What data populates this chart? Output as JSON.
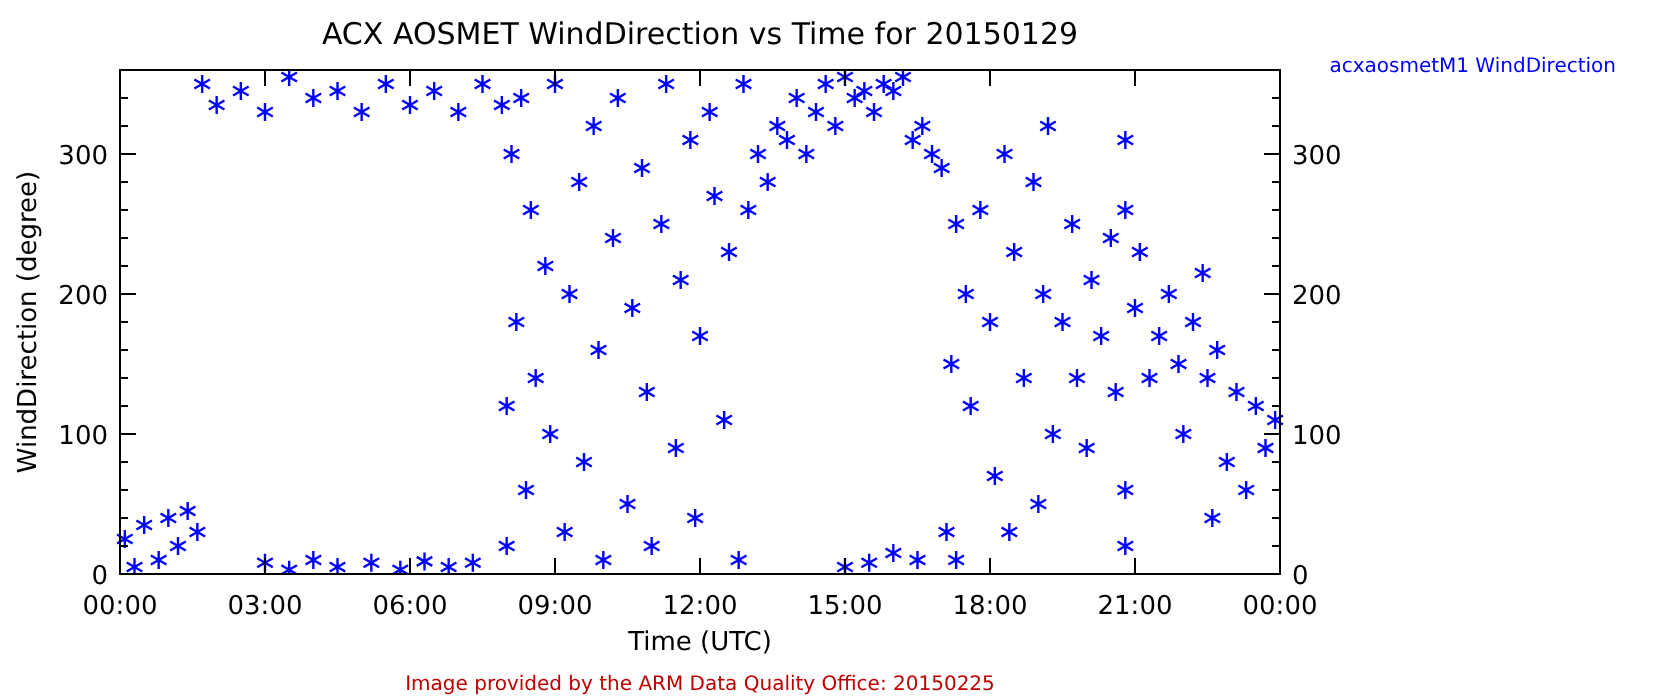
{
  "chart_data": {
    "type": "scatter",
    "title": "ACX AOSMET WindDirection vs Time for 20150129",
    "xlabel": "Time (UTC)",
    "ylabel": "WindDirection (degree)",
    "annotations": [
      "Image provided by the ARM Data Quality Office: 20150225"
    ],
    "xlim": [
      0,
      24
    ],
    "xticks": [
      {
        "value": 0,
        "label": "00:00"
      },
      {
        "value": 3,
        "label": "03:00"
      },
      {
        "value": 6,
        "label": "06:00"
      },
      {
        "value": 9,
        "label": "09:00"
      },
      {
        "value": 12,
        "label": "12:00"
      },
      {
        "value": 15,
        "label": "15:00"
      },
      {
        "value": 18,
        "label": "18:00"
      },
      {
        "value": 21,
        "label": "21:00"
      },
      {
        "value": 24,
        "label": "00:00"
      }
    ],
    "ylim": [
      0,
      360
    ],
    "yticks": [
      0,
      {
        "value": 20,
        "label": null
      },
      {
        "value": 40,
        "label": null
      },
      {
        "value": 60,
        "label": null
      },
      {
        "value": 80,
        "label": null
      },
      100,
      {
        "value": 120,
        "label": null
      },
      {
        "value": 140,
        "label": null
      },
      {
        "value": 160,
        "label": null
      },
      {
        "value": 180,
        "label": null
      },
      200,
      {
        "value": 220,
        "label": null
      },
      {
        "value": 240,
        "label": null
      },
      {
        "value": 260,
        "label": null
      },
      {
        "value": 280,
        "label": null
      },
      300,
      {
        "value": 320,
        "label": null
      },
      {
        "value": 340,
        "label": null
      }
    ],
    "y2lim": [
      0,
      360
    ],
    "y2ticks": [
      0,
      {
        "value": 20,
        "label": null
      },
      {
        "value": 40,
        "label": null
      },
      {
        "value": 60,
        "label": null
      },
      {
        "value": 80,
        "label": null
      },
      100,
      {
        "value": 120,
        "label": null
      },
      {
        "value": 140,
        "label": null
      },
      {
        "value": 160,
        "label": null
      },
      {
        "value": 180,
        "label": null
      },
      200,
      {
        "value": 220,
        "label": null
      },
      {
        "value": 240,
        "label": null
      },
      {
        "value": 260,
        "label": null
      },
      {
        "value": 280,
        "label": null
      },
      300,
      {
        "value": 320,
        "label": null
      },
      {
        "value": 340,
        "label": null
      }
    ],
    "grid": false,
    "legend": "top right",
    "marker": "cross",
    "series": [
      {
        "name": "acxaosmetM1 WindDirection",
        "color": "#0000ff",
        "x": [
          0.1,
          0.3,
          0.5,
          0.8,
          1.0,
          1.2,
          1.4,
          1.6,
          1.7,
          2.0,
          2.5,
          3.0,
          3.5,
          4.0,
          4.5,
          5.0,
          5.5,
          6.0,
          6.5,
          7.0,
          7.5,
          7.9,
          3.0,
          3.5,
          4.0,
          4.5,
          5.2,
          5.8,
          6.3,
          6.8,
          7.3,
          8.0,
          8.0,
          8.1,
          8.2,
          8.3,
          8.4,
          8.5,
          8.6,
          8.8,
          8.9,
          9.0,
          9.2,
          9.3,
          9.5,
          9.6,
          9.8,
          9.9,
          10.0,
          10.2,
          10.3,
          10.5,
          10.6,
          10.8,
          10.9,
          11.0,
          11.2,
          11.3,
          11.5,
          11.6,
          11.8,
          11.9,
          12.0,
          12.2,
          12.3,
          12.5,
          12.6,
          12.8,
          12.9,
          13.0,
          13.2,
          13.4,
          13.6,
          13.8,
          14.0,
          14.2,
          14.4,
          14.6,
          14.8,
          15.0,
          15.2,
          15.4,
          15.6,
          15.8,
          16.0,
          16.2,
          16.4,
          16.6,
          16.8,
          17.0,
          15.0,
          15.5,
          16.0,
          16.5,
          17.1,
          17.2,
          17.3,
          17.3,
          17.5,
          17.6,
          17.8,
          18.0,
          18.1,
          18.3,
          18.4,
          18.5,
          18.7,
          18.9,
          19.0,
          19.1,
          19.2,
          19.3,
          19.5,
          19.7,
          19.8,
          20.0,
          20.1,
          20.3,
          20.5,
          20.6,
          20.8,
          20.8,
          20.8,
          20.8,
          21.0,
          21.1,
          21.3,
          21.5,
          21.7,
          21.9,
          22.0,
          22.2,
          22.4,
          22.5,
          22.6,
          22.7,
          22.9,
          23.1,
          23.3,
          23.5,
          23.7,
          23.9
        ],
        "values": [
          25,
          5,
          35,
          10,
          40,
          20,
          45,
          30,
          350,
          335,
          345,
          330,
          355,
          340,
          345,
          330,
          350,
          335,
          345,
          330,
          350,
          335,
          8,
          3,
          10,
          5,
          8,
          3,
          9,
          5,
          8,
          120,
          20,
          300,
          180,
          340,
          60,
          260,
          140,
          220,
          100,
          350,
          30,
          200,
          280,
          80,
          320,
          160,
          10,
          240,
          340,
          50,
          190,
          290,
          130,
          20,
          250,
          350,
          90,
          210,
          310,
          40,
          170,
          330,
          270,
          110,
          230,
          10,
          350,
          260,
          300,
          280,
          320,
          310,
          340,
          300,
          330,
          350,
          320,
          355,
          340,
          345,
          330,
          350,
          345,
          355,
          310,
          320,
          300,
          290,
          5,
          8,
          15,
          10,
          30,
          150,
          250,
          10,
          200,
          120,
          260,
          180,
          70,
          300,
          30,
          230,
          140,
          280,
          50,
          200,
          320,
          100,
          180,
          250,
          140,
          90,
          210,
          170,
          240,
          130,
          20,
          310,
          60,
          260,
          190,
          230,
          140,
          170,
          200,
          150,
          100,
          180,
          215,
          140,
          40,
          160,
          80,
          130,
          60,
          120,
          90,
          110
        ]
      }
    ]
  }
}
